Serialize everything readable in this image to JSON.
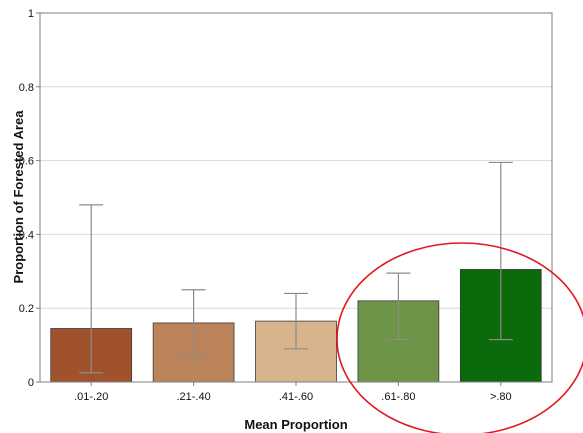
{
  "chart_data": {
    "type": "bar",
    "title": "",
    "xlabel": "Mean Proportion",
    "ylabel": "Proportion of Forested Area",
    "ylim": [
      0,
      1
    ],
    "yticks": [
      0,
      0.2,
      0.4,
      0.6,
      0.8,
      1
    ],
    "ytick_labels": [
      "0",
      "0.2",
      "0.4",
      "0.6",
      "0.8",
      "1"
    ],
    "grid": true,
    "legend": "none",
    "categories": [
      ".01-.20",
      ".21-.40",
      ".41-.60",
      ".61-.80",
      ">.80"
    ],
    "values": [
      0.145,
      0.16,
      0.165,
      0.22,
      0.305
    ],
    "error_low": [
      0.025,
      0.07,
      0.09,
      0.115,
      0.115
    ],
    "error_high": [
      0.48,
      0.25,
      0.24,
      0.295,
      0.595
    ],
    "colors": [
      "#a0522d",
      "#bb8359",
      "#d8b48c",
      "#6e9447",
      "#0b6a0b"
    ],
    "annotation": {
      "shape": "ellipse",
      "color": "#e0191f",
      "highlights": [
        ".61-.80",
        ">.80"
      ]
    }
  }
}
